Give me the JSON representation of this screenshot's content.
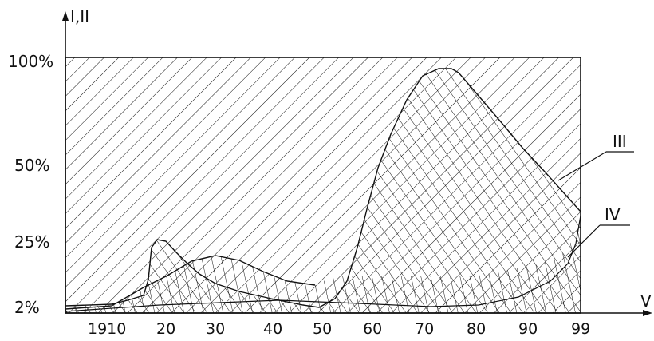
{
  "axis": {
    "y_label": "I,II",
    "x_label": "V"
  },
  "y_ticks": [
    "100%",
    "50%",
    "25%",
    "2%"
  ],
  "x_ticks": [
    "1910",
    "20",
    "30",
    "40",
    "50",
    "60",
    "70",
    "80",
    "90",
    "99"
  ],
  "series_labels": {
    "III": "III",
    "IV": "IV"
  },
  "colors": {
    "ink": "#111111",
    "background": "#ffffff"
  }
}
